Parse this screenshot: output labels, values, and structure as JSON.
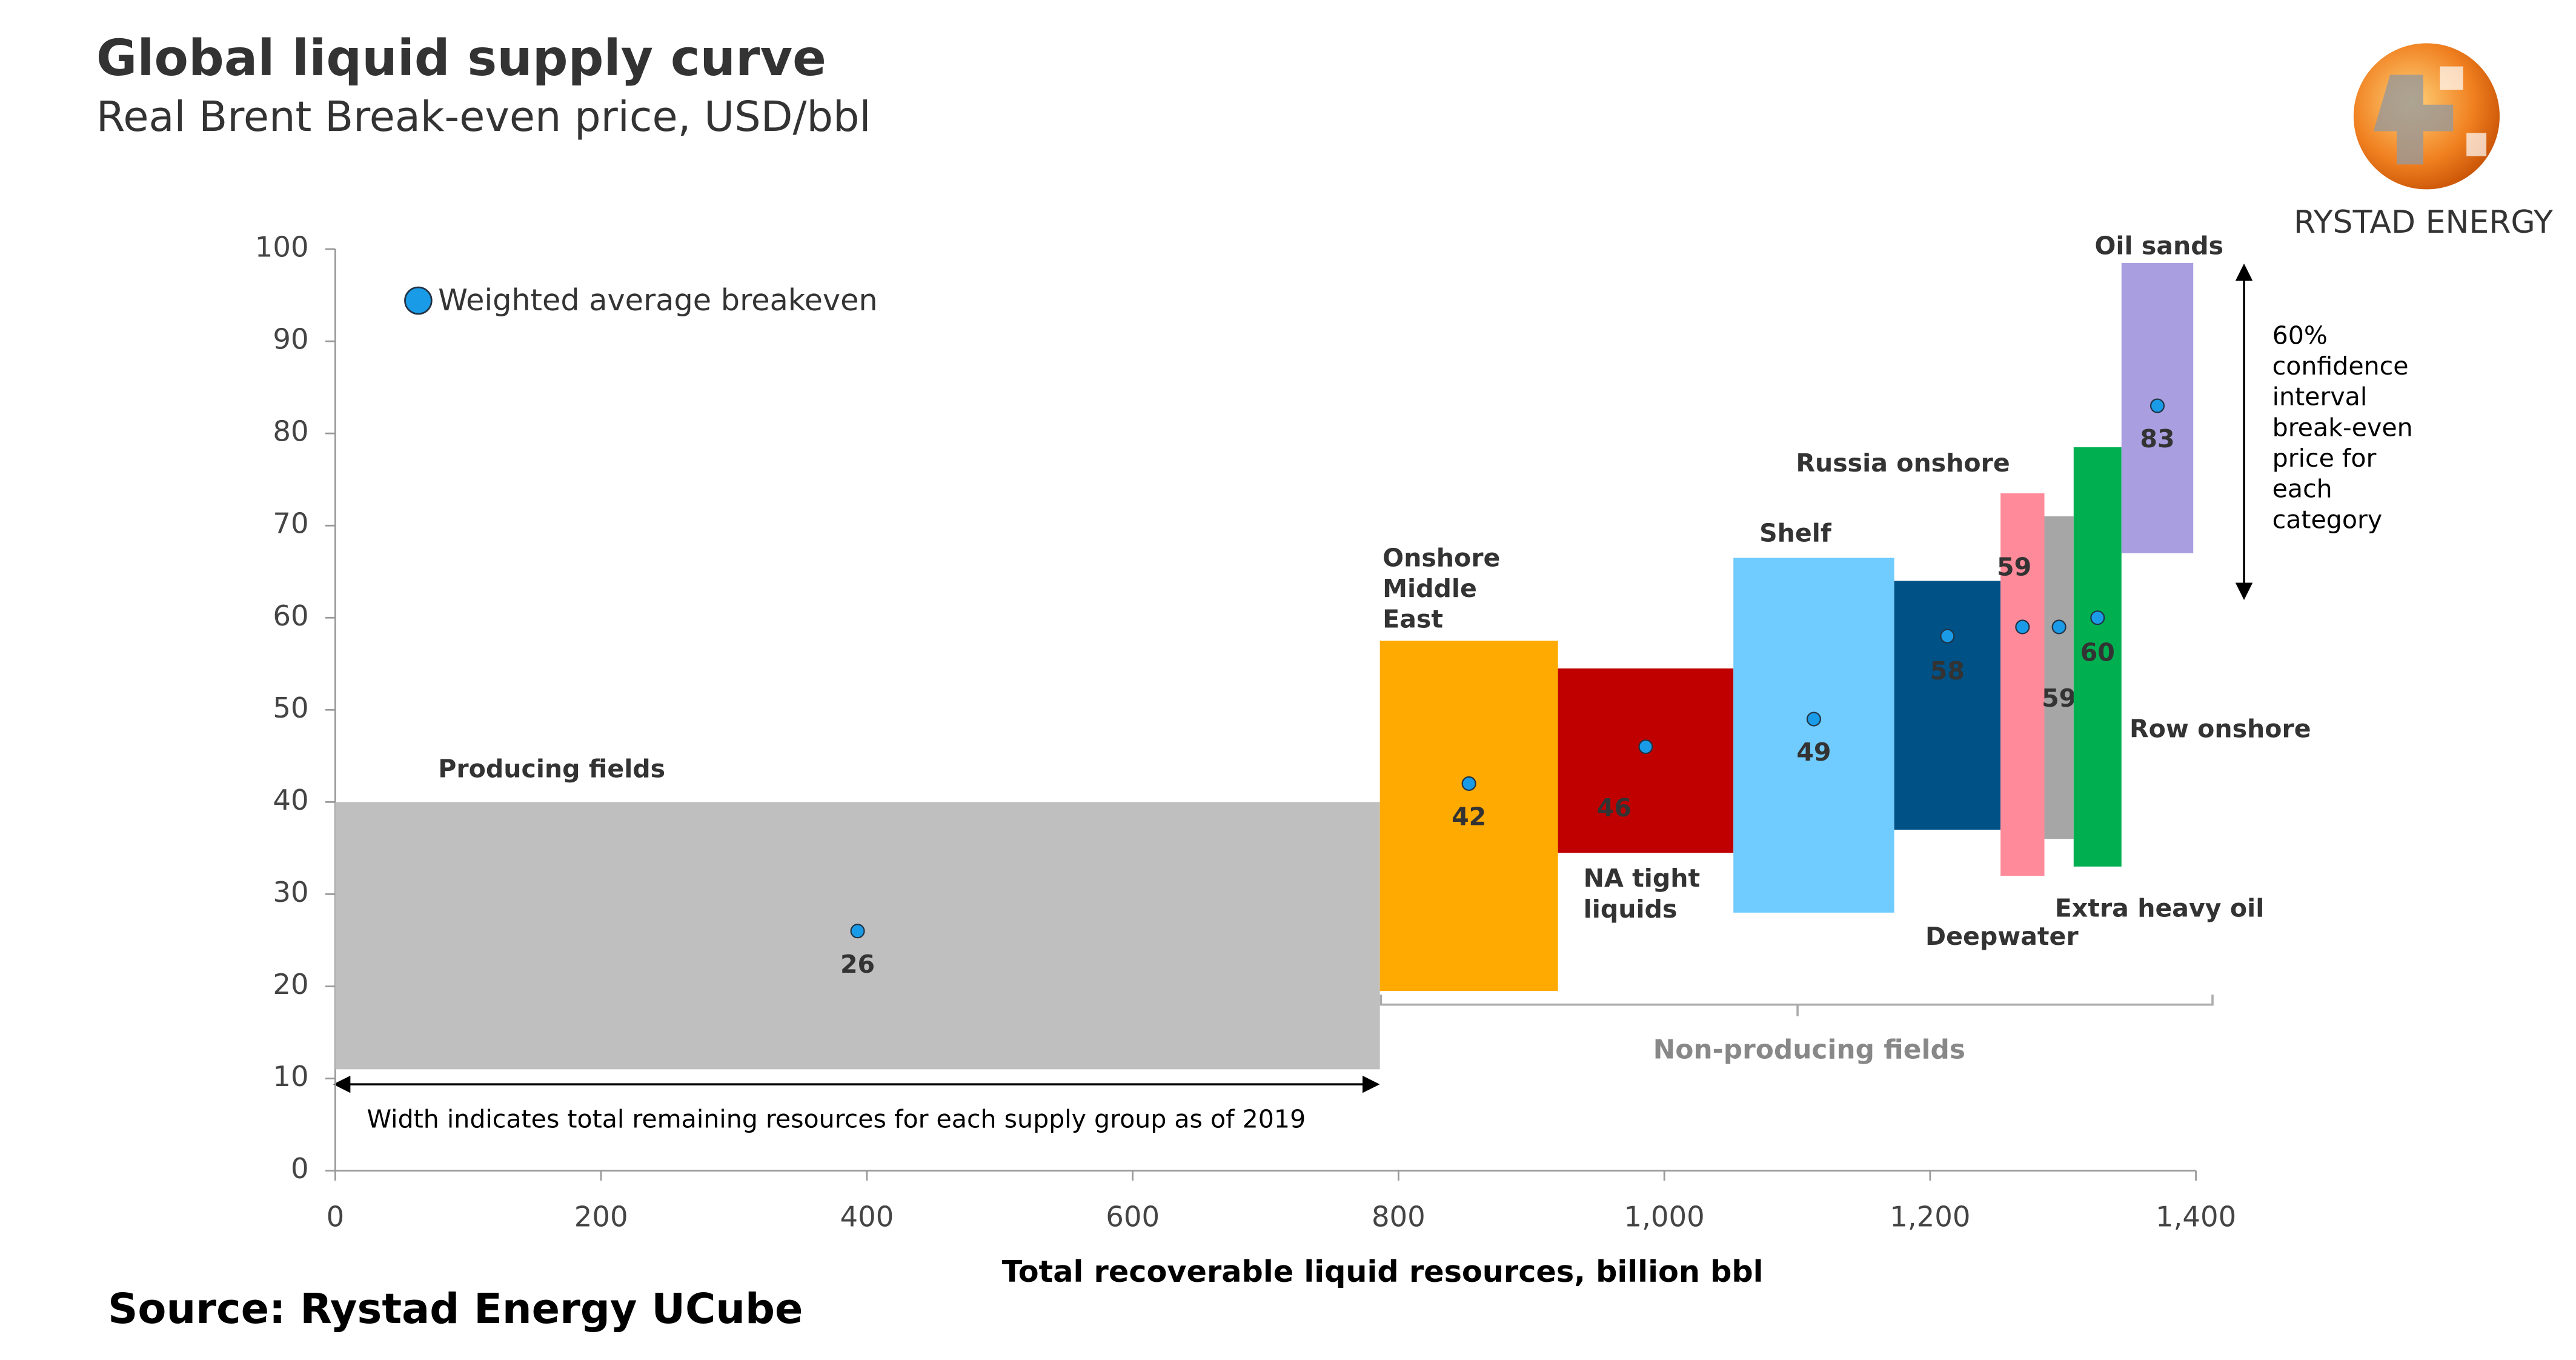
{
  "chart_data": {
    "type": "supply_curve",
    "title": "Global liquid supply curve",
    "subtitle": "Real Brent Break-even price, USD/bbl",
    "x_label": "Total recoverable liquid resources, billion bbl",
    "source": "Source: Rystad Energy UCube",
    "brand": "RYSTAD ENERGY",
    "legend_label": "Weighted average breakeven",
    "width_note": "Width indicates total remaining resources for each supply group as of 2019",
    "group_label": "Non-producing fields",
    "interval_note": "60%\nconfidence\ninterval\nbreak-even\nprice for\neach\ncategory",
    "categories": [
      "Producing fields",
      "Onshore\nMiddle\nEast",
      "NA tight\nliquids",
      "Shelf",
      "Deepwater",
      "Russia onshore",
      "Extra heavy oil",
      "Row onshore",
      "Oil sands"
    ],
    "colors": [
      "#bfbfbf",
      "#ffaa00",
      "#c00000",
      "#70cbff",
      "#005185",
      "#ff8a9a",
      "#a6a6a6",
      "#00b050",
      "#a99fe0"
    ],
    "label_colors": [
      "#888888",
      "#ffaa00",
      "#c00000",
      "#70cbff",
      "#005185",
      "#ff8a9a",
      "#bbbbbb",
      "#00b050",
      "#a99fe0"
    ],
    "resources": [
      786,
      134,
      132,
      121,
      80,
      33,
      22,
      36,
      54
    ],
    "low": [
      11,
      19.5,
      34.5,
      28,
      37,
      32,
      36,
      33,
      67
    ],
    "high": [
      40,
      57.5,
      54.5,
      66.5,
      64,
      73.5,
      71,
      78.5,
      98.5
    ],
    "values": [
      26,
      42,
      46,
      49,
      58,
      59,
      59,
      60,
      83
    ],
    "dot_color": "#1a9be8",
    "xlim": [
      0,
      1400
    ],
    "xticks": [
      0,
      200,
      400,
      600,
      800,
      {
        "value": 1000,
        "label": "1,000"
      },
      {
        "value": 1200,
        "label": "1,200"
      },
      {
        "value": 1400,
        "label": "1,400"
      }
    ],
    "ylim": [
      0,
      100
    ],
    "yticks": [
      0,
      10,
      20,
      30,
      40,
      50,
      60,
      70,
      80,
      90,
      100
    ]
  }
}
